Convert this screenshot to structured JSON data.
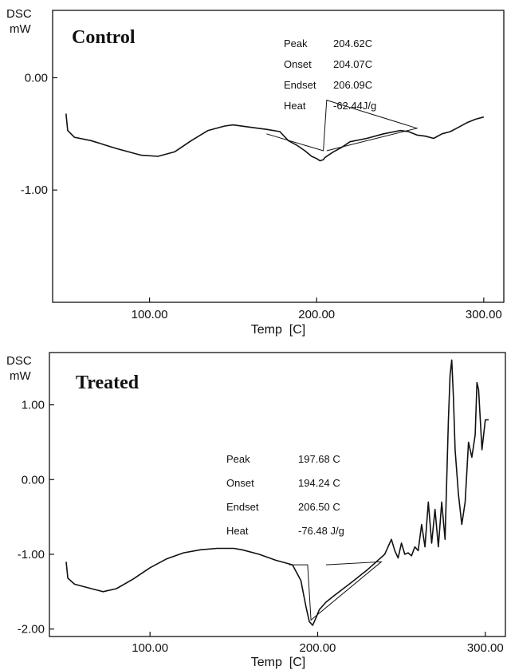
{
  "colors": {
    "line": "#111111",
    "background": "#ffffff"
  },
  "chart_data": [
    {
      "type": "line",
      "title": "Control",
      "ylabel_top": "DSC",
      "ylabel_unit": "mW",
      "xlabel": "Temp  [C]",
      "xlim": [
        42,
        312
      ],
      "ylim": [
        -2.0,
        0.6
      ],
      "xticks": [
        100,
        200,
        300
      ],
      "xtick_labels": [
        "100.00",
        "200.00",
        "300.00"
      ],
      "yticks": [
        0,
        -1
      ],
      "ytick_labels": [
        "0.00",
        "-1.00"
      ],
      "grid": false,
      "annotation": {
        "rows": [
          {
            "label": "Peak",
            "value": "204.62C"
          },
          {
            "label": "Onset",
            "value": "204.07C"
          },
          {
            "label": "Endset",
            "value": "206.09C"
          },
          {
            "label": "Heat",
            "value": "-62.44J/g"
          }
        ]
      },
      "series": [
        {
          "x": [
            50,
            51,
            55,
            65,
            80,
            95,
            105,
            115,
            125,
            135,
            145,
            150,
            160,
            170,
            178,
            183,
            188,
            193,
            197,
            200,
            202,
            204,
            205,
            207,
            210,
            215,
            220,
            230,
            240,
            250,
            255,
            260,
            265,
            270,
            275,
            280,
            285,
            290,
            295,
            300
          ],
          "y": [
            -0.32,
            -0.47,
            -0.53,
            -0.56,
            -0.63,
            -0.69,
            -0.7,
            -0.66,
            -0.56,
            -0.47,
            -0.43,
            -0.42,
            -0.44,
            -0.46,
            -0.48,
            -0.56,
            -0.6,
            -0.65,
            -0.7,
            -0.72,
            -0.74,
            -0.73,
            -0.71,
            -0.69,
            -0.66,
            -0.62,
            -0.57,
            -0.54,
            -0.5,
            -0.47,
            -0.48,
            -0.51,
            -0.52,
            -0.54,
            -0.5,
            -0.48,
            -0.44,
            -0.4,
            -0.37,
            -0.35
          ]
        }
      ],
      "baseline": {
        "x": [
          170,
          204,
          206,
          260,
          206
        ],
        "y": [
          -0.5,
          -0.65,
          -0.2,
          -0.45,
          -0.65
        ]
      }
    },
    {
      "type": "line",
      "title": "Treated",
      "ylabel_top": "DSC",
      "ylabel_unit": "mW",
      "xlabel": "Temp  [C]",
      "xlim": [
        40,
        312
      ],
      "ylim": [
        -2.1,
        1.7
      ],
      "xticks": [
        100,
        200,
        300
      ],
      "xtick_labels": [
        "100.00",
        "200.00",
        "300.00"
      ],
      "yticks": [
        1,
        0,
        -1,
        -2
      ],
      "ytick_labels": [
        "1.00",
        "0.00",
        "-1.00",
        "-2.00"
      ],
      "grid": false,
      "annotation": {
        "rows": [
          {
            "label": "Peak",
            "value": "197.68 C"
          },
          {
            "label": "Onset",
            "value": "194.24 C"
          },
          {
            "label": "Endset",
            "value": "206.50 C"
          },
          {
            "label": "Heat",
            "value": "-76.48 J/g"
          }
        ]
      },
      "series": [
        {
          "x": [
            50,
            51,
            55,
            65,
            72,
            80,
            90,
            100,
            110,
            120,
            130,
            140,
            150,
            155,
            165,
            175,
            185,
            190,
            193,
            195,
            197,
            199,
            201,
            205,
            210,
            220,
            230,
            235,
            240,
            244,
            246,
            248,
            250,
            252,
            254,
            256,
            258,
            260,
            262,
            264,
            266,
            268,
            270,
            272,
            274,
            276,
            278,
            279,
            280,
            281,
            282,
            284,
            286,
            288,
            290,
            292,
            294,
            295,
            296,
            297,
            298,
            300,
            302
          ],
          "y": [
            -1.1,
            -1.32,
            -1.4,
            -1.46,
            -1.5,
            -1.46,
            -1.33,
            -1.18,
            -1.06,
            -0.98,
            -0.94,
            -0.92,
            -0.92,
            -0.94,
            -1.0,
            -1.08,
            -1.14,
            -1.35,
            -1.7,
            -1.9,
            -1.95,
            -1.85,
            -1.74,
            -1.64,
            -1.55,
            -1.38,
            -1.2,
            -1.1,
            -1.0,
            -0.8,
            -0.95,
            -1.05,
            -0.85,
            -1.0,
            -0.98,
            -1.02,
            -0.9,
            -0.95,
            -0.6,
            -0.9,
            -0.3,
            -0.85,
            -0.4,
            -0.9,
            -0.3,
            -0.8,
            0.8,
            1.4,
            1.6,
            1.1,
            0.4,
            -0.2,
            -0.6,
            -0.3,
            0.5,
            0.3,
            0.6,
            1.3,
            1.2,
            0.8,
            0.4,
            0.8,
            0.8
          ]
        }
      ],
      "baseline": {
        "x": [
          183,
          194,
          196,
          238,
          205
        ],
        "y": [
          -1.14,
          -1.14,
          -1.88,
          -1.1,
          -1.14
        ]
      }
    }
  ]
}
